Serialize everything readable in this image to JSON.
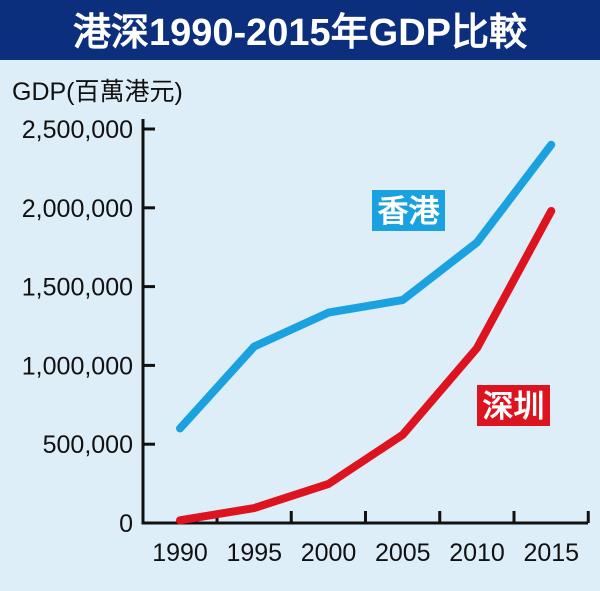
{
  "chart_data": {
    "type": "line",
    "title": "港深1990-2015年GDP比較",
    "ylabel": "GDP(百萬港元)",
    "xlabel": "",
    "x": [
      1990,
      1995,
      2000,
      2005,
      2010,
      2015
    ],
    "x_tick_labels": [
      "1990",
      "1995",
      "2000",
      "2005",
      "2010",
      "2015"
    ],
    "y_tick_labels": [
      "0",
      "500,000",
      "1,000,000",
      "1,500,000",
      "2,000,000",
      "2,500,000"
    ],
    "y_ticks": [
      0,
      500000,
      1000000,
      1500000,
      2000000,
      2500000
    ],
    "ylim": [
      0,
      2500000
    ],
    "grid": false,
    "series": [
      {
        "name": "香港",
        "color": "#1aa1df",
        "values": [
          600000,
          1120000,
          1335000,
          1415000,
          1780000,
          2400000
        ]
      },
      {
        "name": "深圳",
        "color": "#de1320",
        "values": [
          17000,
          95000,
          248000,
          560000,
          1110000,
          1980000
        ]
      }
    ]
  },
  "colors": {
    "title_bar": "#0b2f7c",
    "background": "#ddeef9"
  }
}
